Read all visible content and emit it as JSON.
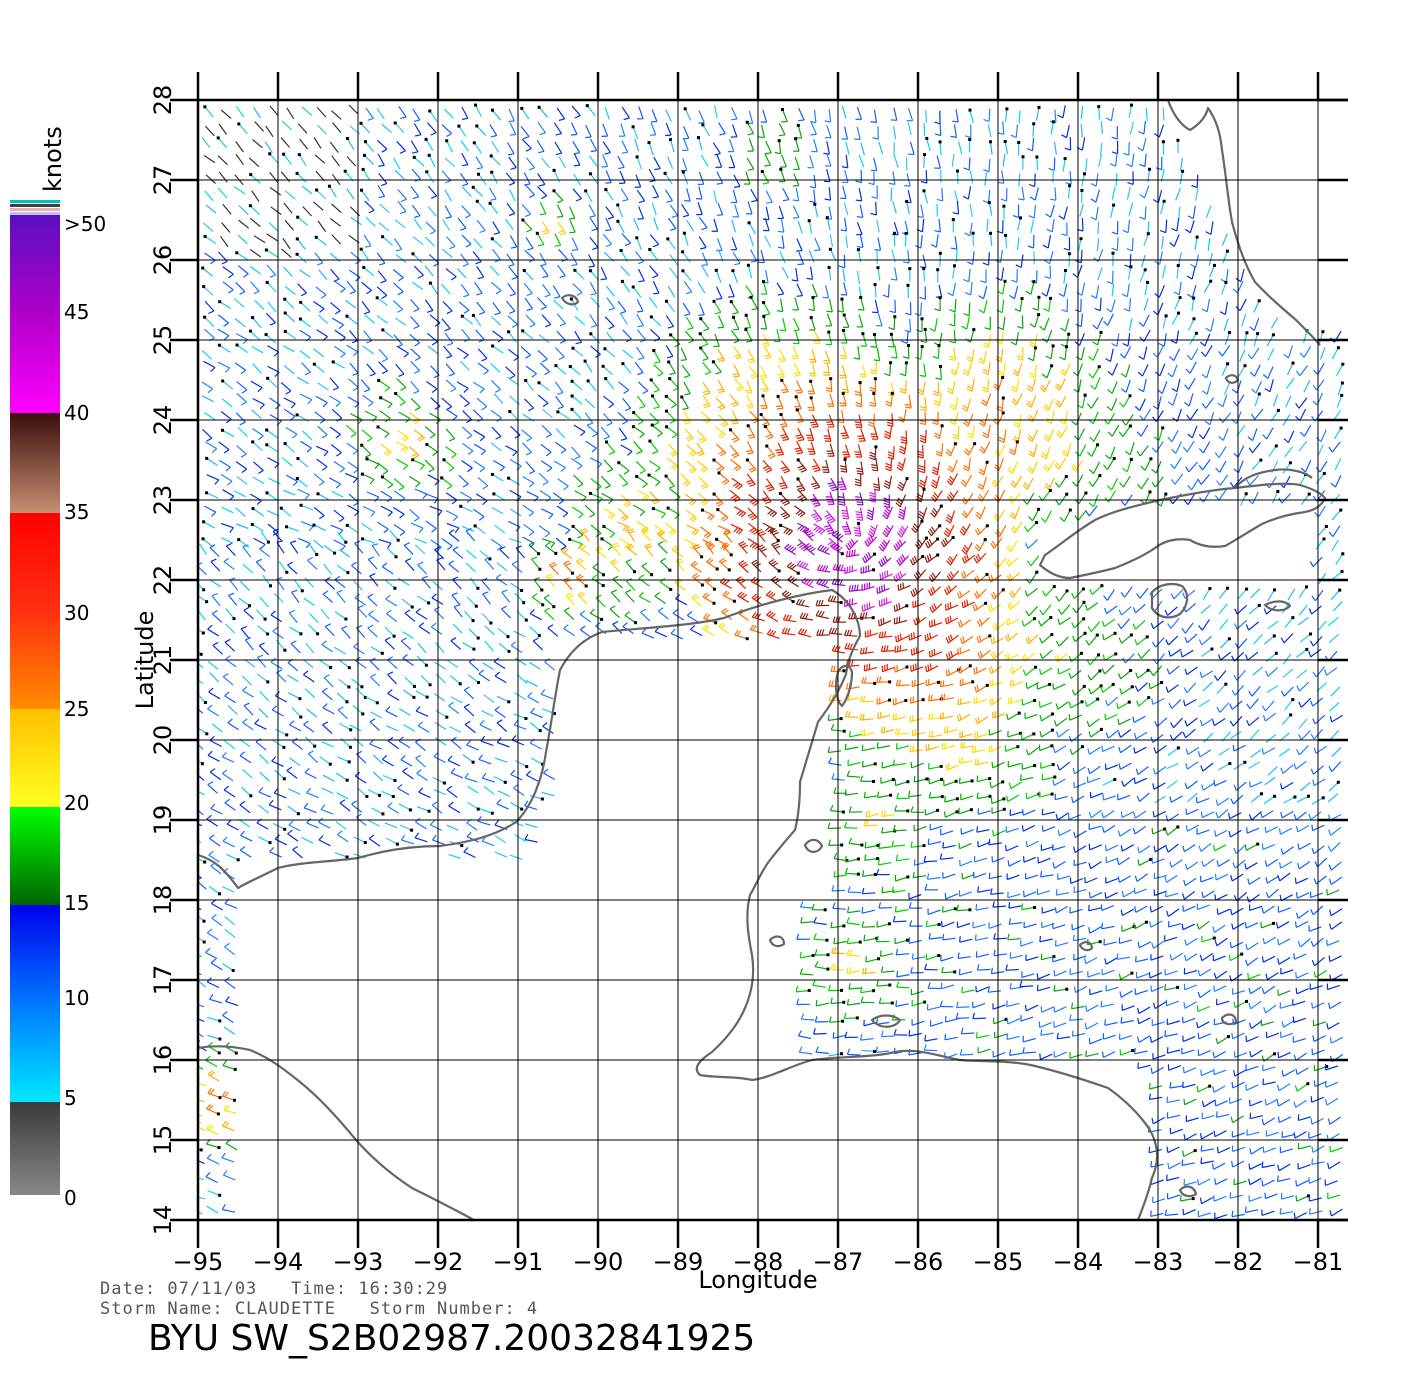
{
  "map": {
    "x_axis_title": "Longitude",
    "y_axis_title": "Latitude",
    "lon_ticks": [
      "−95",
      "−94",
      "−93",
      "−92",
      "−91",
      "−90",
      "−89",
      "−88",
      "−87",
      "−86",
      "−85",
      "−84",
      "−83",
      "−82",
      "−81"
    ],
    "lat_ticks": [
      "14",
      "15",
      "16",
      "17",
      "18",
      "19",
      "20",
      "21",
      "22",
      "23",
      "24",
      "25",
      "26",
      "27",
      "28"
    ],
    "lon_range": [
      -95,
      -81
    ],
    "lat_range": [
      14,
      28
    ],
    "grid": true
  },
  "colorbar": {
    "title": "knots",
    "labels": [
      ">50",
      "45",
      "40",
      "35",
      "30",
      "25",
      "20",
      "15",
      "10",
      "5",
      "0"
    ],
    "colors": {
      "0_5": [
        "#888888",
        "#3a3a3a"
      ],
      "5_10": [
        "#00e8ff",
        "#0070ff"
      ],
      "10_15": [
        "#0070ff",
        "#0000ee"
      ],
      "15_20": [
        "#006600",
        "#00ff00"
      ],
      "20_25": [
        "#ffff00",
        "#ffc000"
      ],
      "25_30": [
        "#ff8000",
        "#ff2000"
      ],
      "30_35": [
        "#ff2000",
        "#ff0000"
      ],
      "35_40": [
        "#c08060",
        "#401010"
      ],
      "40_45": [
        "#ff00ff",
        "#c000c0"
      ],
      "45_50": [
        "#a000c0",
        "#6000c0"
      ]
    }
  },
  "coast_color": "#666666",
  "info": {
    "line1": "Date: 07/11/03   Time: 16:30:29",
    "line2": "Storm Name: CLAUDETTE   Storm Number: 4",
    "product": "BYU SW_S2B02987.20032841925"
  }
}
